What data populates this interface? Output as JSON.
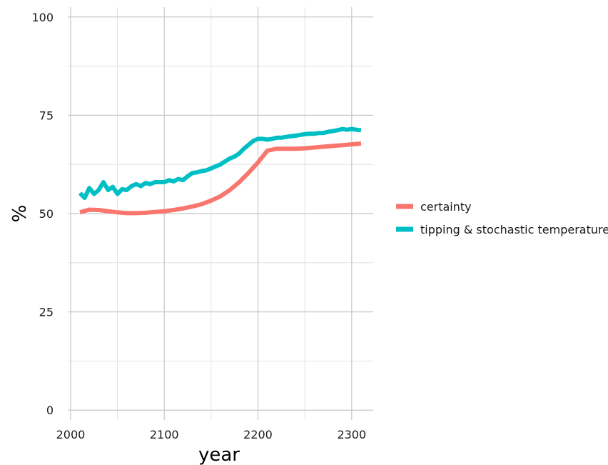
{
  "chart_data": {
    "type": "line",
    "xlabel": "year",
    "ylabel": "%",
    "xlim": [
      1997,
      2323
    ],
    "ylim": [
      -2.5,
      102.5
    ],
    "x_ticks": [
      2000,
      2100,
      2200,
      2300
    ],
    "y_ticks": [
      0,
      25,
      50,
      75,
      100
    ],
    "grid": true,
    "legend_position": "right",
    "series": [
      {
        "name": "certainty",
        "color": "#F8766D",
        "x": [
          2010,
          2020,
          2030,
          2040,
          2050,
          2060,
          2070,
          2080,
          2090,
          2100,
          2110,
          2120,
          2130,
          2140,
          2150,
          2160,
          2170,
          2180,
          2190,
          2200,
          2210,
          2220,
          2230,
          2240,
          2250,
          2260,
          2270,
          2280,
          2290,
          2300,
          2310
        ],
        "y": [
          50.3,
          51.0,
          50.9,
          50.6,
          50.3,
          50.1,
          50.1,
          50.2,
          50.4,
          50.6,
          50.9,
          51.3,
          51.8,
          52.4,
          53.3,
          54.4,
          56.0,
          58.0,
          60.4,
          63.0,
          66.0,
          66.5,
          66.5,
          66.5,
          66.6,
          66.8,
          67.0,
          67.2,
          67.4,
          67.6,
          67.8
        ]
      },
      {
        "name": "tipping & stochastic temperature",
        "color": "#00BFC4",
        "x": [
          2010,
          2015,
          2020,
          2025,
          2030,
          2035,
          2040,
          2045,
          2050,
          2055,
          2060,
          2065,
          2070,
          2075,
          2080,
          2085,
          2090,
          2095,
          2100,
          2105,
          2110,
          2115,
          2120,
          2125,
          2130,
          2135,
          2140,
          2145,
          2150,
          2155,
          2160,
          2165,
          2170,
          2175,
          2180,
          2185,
          2190,
          2195,
          2200,
          2205,
          2210,
          2215,
          2220,
          2225,
          2230,
          2235,
          2240,
          2245,
          2250,
          2255,
          2260,
          2265,
          2270,
          2275,
          2280,
          2285,
          2290,
          2295,
          2300,
          2305,
          2310
        ],
        "y": [
          55.2,
          54.0,
          56.5,
          55.0,
          56.0,
          58.0,
          56.0,
          56.8,
          55.0,
          56.2,
          56.0,
          57.0,
          57.5,
          57.0,
          57.8,
          57.5,
          58.0,
          58.0,
          58.0,
          58.5,
          58.2,
          58.8,
          58.5,
          59.5,
          60.3,
          60.5,
          60.8,
          61.0,
          61.5,
          62.0,
          62.5,
          63.3,
          64.0,
          64.5,
          65.3,
          66.5,
          67.5,
          68.5,
          69.0,
          69.0,
          68.8,
          69.0,
          69.3,
          69.3,
          69.5,
          69.7,
          69.8,
          70.0,
          70.2,
          70.3,
          70.3,
          70.5,
          70.5,
          70.8,
          71.0,
          71.2,
          71.5,
          71.3,
          71.5,
          71.3,
          71.2
        ]
      }
    ]
  }
}
